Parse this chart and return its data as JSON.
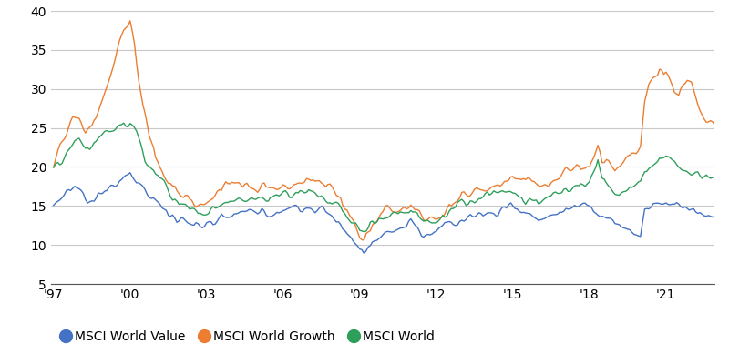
{
  "ylim": [
    5,
    40
  ],
  "xlim_start": 1996.9,
  "xlim_end": 2022.9,
  "yticks": [
    5,
    10,
    15,
    20,
    25,
    30,
    35,
    40
  ],
  "xtick_labels": [
    "'97",
    "'00",
    "'03",
    "'06",
    "'09",
    "'12",
    "'15",
    "'18",
    "'21"
  ],
  "xtick_positions": [
    1997,
    2000,
    2003,
    2006,
    2009,
    2012,
    2015,
    2018,
    2021
  ],
  "line_value_color": "#4472C4",
  "line_growth_color": "#ED7D31",
  "line_world_color": "#2E9E5B",
  "legend_labels": [
    "MSCI World Value",
    "MSCI World Growth",
    "MSCI World"
  ],
  "line_width": 1.0,
  "background_color": "#FFFFFF",
  "grid_color": "#C8C8C8",
  "tick_label_fontsize": 10,
  "legend_fontsize": 10
}
